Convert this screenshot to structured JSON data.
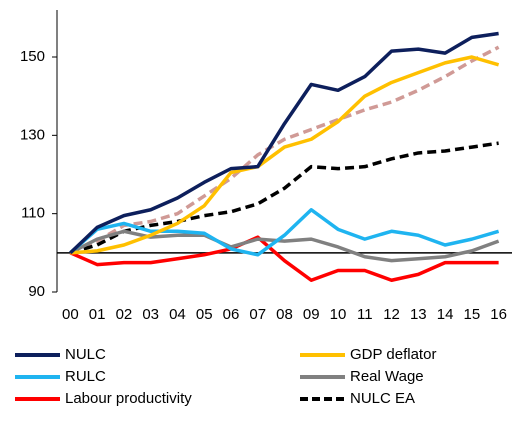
{
  "chart_data": {
    "type": "line",
    "categories": [
      "00",
      "01",
      "02",
      "03",
      "04",
      "05",
      "06",
      "07",
      "08",
      "09",
      "10",
      "11",
      "12",
      "13",
      "14",
      "15",
      "16"
    ],
    "ylim": [
      90,
      162
    ],
    "yticks": [
      90,
      110,
      130,
      150
    ],
    "reference_line": 100,
    "reference_color": "#000000",
    "legend": "bottom",
    "series": [
      {
        "name": "NULC",
        "color": "#0d1f5c",
        "dash": false,
        "values": [
          100,
          106.5,
          109.5,
          111,
          114,
          118,
          121.5,
          122,
          133,
          143,
          141.5,
          145,
          151.5,
          152,
          151,
          155,
          156
        ]
      },
      {
        "name": "GDP deflator",
        "color": "#ffc000",
        "dash": false,
        "values": [
          100,
          100.5,
          102,
          104.5,
          107.5,
          112,
          120.5,
          122,
          127,
          129,
          133.5,
          140,
          143.5,
          146,
          148.5,
          150,
          148
        ]
      },
      {
        "name": "RULC",
        "color": "#1fb4f0",
        "dash": false,
        "values": [
          100,
          106,
          107.5,
          105.5,
          105.5,
          105,
          101,
          99.5,
          104.5,
          111,
          106,
          103.5,
          105.5,
          104.5,
          102,
          103.5,
          105.5
        ]
      },
      {
        "name": "Real Wage",
        "color": "#808080",
        "dash": false,
        "values": [
          100,
          103.5,
          105.5,
          104,
          104.5,
          104.5,
          101.5,
          103.5,
          103,
          103.5,
          101.5,
          99,
          98,
          98.5,
          99,
          100.5,
          103
        ]
      },
      {
        "name": "Labour productivity",
        "color": "#ff0000",
        "dash": false,
        "values": [
          100,
          97,
          97.5,
          97.5,
          98.5,
          99.5,
          101,
          104,
          98,
          93,
          95.5,
          95.5,
          93,
          94.5,
          97.5,
          97.5,
          97.5
        ]
      },
      {
        "name": "NULC EA",
        "color": "#000000",
        "dash": true,
        "values": [
          100,
          102,
          105.5,
          107,
          108,
          109.5,
          110.5,
          112.5,
          116.5,
          122,
          121.5,
          122,
          124,
          125.5,
          126,
          127,
          128
        ]
      },
      {
        "name": null,
        "color": "#d09a96",
        "dash": true,
        "values": [
          100,
          103,
          107,
          108,
          110,
          114.5,
          119,
          125,
          129,
          131.5,
          134,
          136.5,
          138.5,
          141.5,
          145,
          149,
          152.5
        ]
      }
    ]
  }
}
